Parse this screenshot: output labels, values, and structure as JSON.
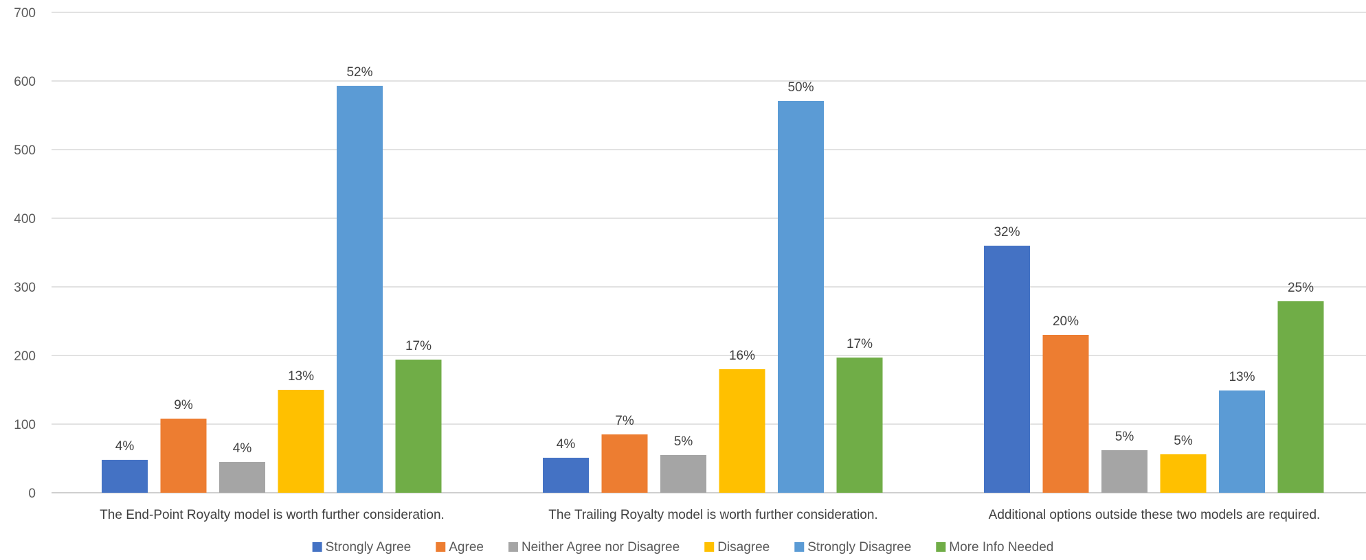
{
  "chart_data": {
    "type": "bar",
    "title": "",
    "xlabel": "",
    "ylabel": "",
    "ylim": [
      0,
      700
    ],
    "yticks": [
      0,
      100,
      200,
      300,
      400,
      500,
      600,
      700
    ],
    "grid": true,
    "legend_position": "bottom",
    "categories": [
      "The End-Point Royalty model is worth further consideration.",
      "The Trailing Royalty model is worth further consideration.",
      "Additional options outside these two models are required."
    ],
    "series": [
      {
        "name": "Strongly Agree",
        "color": "#4472C4",
        "values": [
          48,
          51,
          360
        ],
        "labels": [
          "4%",
          "4%",
          "32%"
        ]
      },
      {
        "name": "Agree",
        "color": "#ED7D31",
        "values": [
          108,
          85,
          230
        ],
        "labels": [
          "9%",
          "7%",
          "20%"
        ]
      },
      {
        "name": "Neither Agree nor Disagree",
        "color": "#A5A5A5",
        "values": [
          45,
          55,
          62
        ],
        "labels": [
          "4%",
          "5%",
          "5%"
        ]
      },
      {
        "name": "Disagree",
        "color": "#FFC000",
        "values": [
          150,
          180,
          56
        ],
        "labels": [
          "13%",
          "16%",
          "5%"
        ]
      },
      {
        "name": "Strongly Disagree",
        "color": "#5B9BD5",
        "values": [
          593,
          571,
          149
        ],
        "labels": [
          "52%",
          "50%",
          "13%"
        ]
      },
      {
        "name": "More Info Needed",
        "color": "#70AD47",
        "values": [
          194,
          197,
          279
        ],
        "labels": [
          "17%",
          "17%",
          "25%"
        ]
      }
    ]
  }
}
